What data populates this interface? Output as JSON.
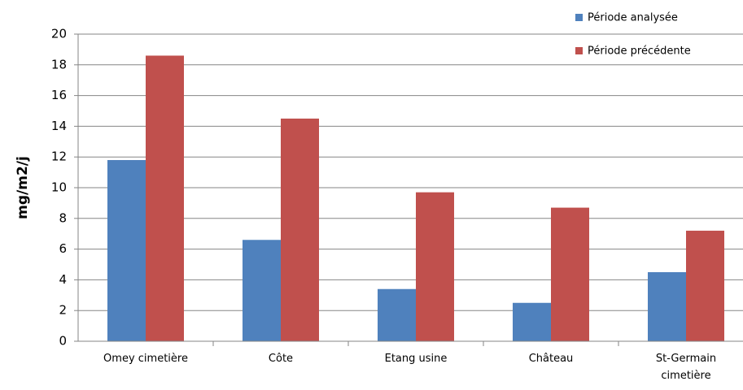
{
  "chart_data": {
    "type": "bar",
    "title": "",
    "xlabel": "",
    "ylabel": "mg/m2/j",
    "ylim": [
      0,
      20
    ],
    "ytick_step": 2,
    "grid": true,
    "legend_position": "top-right",
    "categories": [
      [
        "Omey cimetière"
      ],
      [
        "Côte"
      ],
      [
        "Etang usine"
      ],
      [
        "Château"
      ],
      [
        "St-Germain",
        "cimetière"
      ]
    ],
    "series": [
      {
        "name": "Période analysée",
        "color": "#4f81bd",
        "values": [
          11.8,
          6.6,
          3.4,
          2.5,
          4.5
        ]
      },
      {
        "name": "Période précédente",
        "color": "#c0504d",
        "values": [
          18.6,
          14.5,
          9.7,
          8.7,
          7.2
        ]
      }
    ]
  }
}
